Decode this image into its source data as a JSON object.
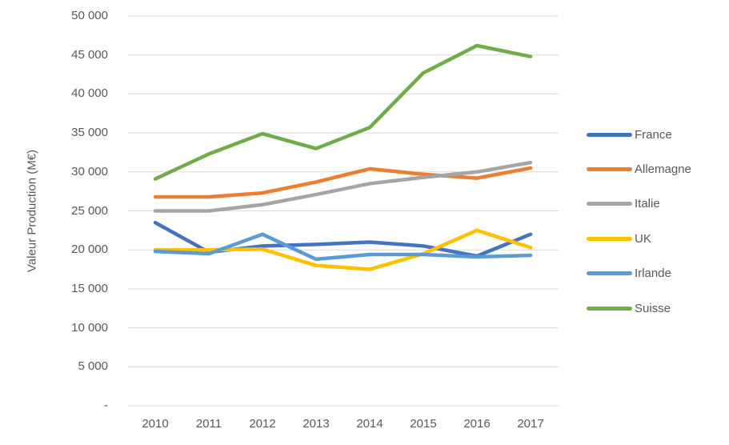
{
  "chart_data": {
    "type": "line",
    "title": "",
    "xlabel": "",
    "ylabel": "Valeur Production (M€)",
    "x": [
      "2010",
      "2011",
      "2012",
      "2013",
      "2014",
      "2015",
      "2016",
      "2017"
    ],
    "ylim": [
      0,
      50000
    ],
    "ytick_step": 5000,
    "ytick_labels": [
      "-",
      "5 000",
      "10 000",
      "15 000",
      "20 000",
      "25 000",
      "30 000",
      "35 000",
      "40 000",
      "45 000",
      "50 000"
    ],
    "grid": true,
    "legend_position": "right",
    "series": [
      {
        "name": "France",
        "color": "#4472C4",
        "values": [
          23500,
          19700,
          20500,
          20700,
          21000,
          20500,
          19200,
          22000
        ]
      },
      {
        "name": "Allemagne",
        "color": "#ED7D31",
        "values": [
          26800,
          26800,
          27300,
          28700,
          30400,
          29700,
          29200,
          30500
        ]
      },
      {
        "name": "Italie",
        "color": "#A5A5A5",
        "values": [
          25000,
          25000,
          25800,
          27100,
          28500,
          29300,
          30000,
          31200
        ]
      },
      {
        "name": "UK",
        "color": "#FFC000",
        "values": [
          20000,
          20000,
          20100,
          18000,
          17500,
          19500,
          22500,
          20300
        ]
      },
      {
        "name": "Irlande",
        "color": "#5B9BD5",
        "values": [
          19800,
          19500,
          22000,
          18800,
          19400,
          19400,
          19100,
          19300
        ]
      },
      {
        "name": "Suisse",
        "color": "#70AD47",
        "values": [
          29100,
          32300,
          34900,
          33000,
          35700,
          42700,
          46200,
          44800
        ]
      }
    ]
  },
  "style": {
    "gridline_color": "#D9D9D9",
    "axis_text_color": "#595959",
    "line_width": 4.5
  }
}
